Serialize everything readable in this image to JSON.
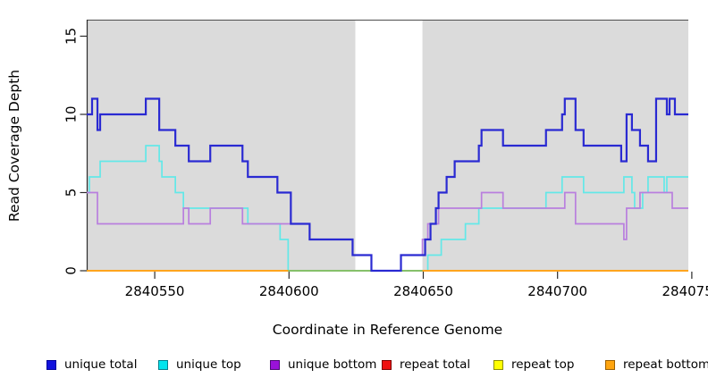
{
  "figure": {
    "x_axis": {
      "label": "Coordinate in Reference Genome",
      "ticks": [
        "2840550",
        "2840600",
        "2840650",
        "2840700",
        "2840750"
      ],
      "tick_values": [
        2840550,
        2840600,
        2840650,
        2840700,
        2840750
      ]
    },
    "y_axis": {
      "label": "Read Coverage Depth",
      "ticks": [
        "0",
        "5",
        "10",
        "15"
      ],
      "tick_values": [
        0,
        5,
        10,
        15
      ]
    }
  },
  "legend": [
    {
      "key": "unique-total",
      "label": "unique total",
      "swatch": "#1212dd",
      "border": "#00009c"
    },
    {
      "key": "unique-top",
      "label": "unique top",
      "swatch": "#00e5ee",
      "border": "#00808d"
    },
    {
      "key": "unique-bottom",
      "label": "unique bottom",
      "swatch": "#9a12d8",
      "border": "#4d0a74"
    },
    {
      "key": "repeat-total",
      "label": "repeat total",
      "swatch": "#ee1111",
      "border": "#7a0000"
    },
    {
      "key": "repeat-top",
      "label": "repeat top",
      "swatch": "#ffff00",
      "border": "#8d8d00"
    },
    {
      "key": "repeat-bottom",
      "label": "repeat bottom",
      "swatch": "#ffa510",
      "border": "#9c5f00"
    }
  ],
  "chart_data": {
    "type": "step-line",
    "title": "",
    "xlabel": "Coordinate in Reference Genome",
    "ylabel": "Read Coverage Depth",
    "x_range": [
      2840525,
      2840749
    ],
    "y_range": [
      0,
      16
    ],
    "grid": false,
    "panel_background": "#dbdbdb",
    "panel_top_border": "#4d4d4d",
    "gap_band": {
      "from": 2840625,
      "to": 2840650,
      "color": "#ffffff"
    },
    "zero_overlap_segment": {
      "from": 2840600,
      "to": 2840650,
      "depth": 0,
      "color": "#74c476",
      "note": "pale green blended line along zero between 2840600 and 2840650"
    },
    "series": [
      {
        "name": "unique total",
        "key": "unique-total",
        "color": "#2a2ad2",
        "width": 2.2,
        "steps": [
          [
            2840525,
            10
          ],
          [
            2840527,
            11
          ],
          [
            2840529,
            9
          ],
          [
            2840530,
            10
          ],
          [
            2840547,
            11
          ],
          [
            2840552,
            9
          ],
          [
            2840558,
            8
          ],
          [
            2840563,
            7
          ],
          [
            2840571,
            8
          ],
          [
            2840583,
            7
          ],
          [
            2840585,
            6
          ],
          [
            2840596,
            5
          ],
          [
            2840601,
            3
          ],
          [
            2840608,
            2
          ],
          [
            2840624,
            1
          ],
          [
            2840631,
            0
          ],
          [
            2840642,
            1
          ],
          [
            2840651,
            2
          ],
          [
            2840653,
            3
          ],
          [
            2840655,
            4
          ],
          [
            2840656,
            5
          ],
          [
            2840659,
            6
          ],
          [
            2840662,
            7
          ],
          [
            2840671,
            8
          ],
          [
            2840672,
            9
          ],
          [
            2840680,
            8
          ],
          [
            2840696,
            9
          ],
          [
            2840702,
            10
          ],
          [
            2840703,
            11
          ],
          [
            2840707,
            9
          ],
          [
            2840710,
            8
          ],
          [
            2840724,
            7
          ],
          [
            2840726,
            10
          ],
          [
            2840728,
            9
          ],
          [
            2840731,
            8
          ],
          [
            2840734,
            7
          ],
          [
            2840737,
            11
          ],
          [
            2840741,
            10
          ],
          [
            2840742,
            11
          ],
          [
            2840744,
            10
          ],
          [
            2840749,
            10
          ]
        ]
      },
      {
        "name": "unique top",
        "key": "unique-top",
        "color": "#63e8e8",
        "width": 1.7,
        "steps": [
          [
            2840525,
            5
          ],
          [
            2840526,
            6
          ],
          [
            2840530,
            7
          ],
          [
            2840547,
            8
          ],
          [
            2840552,
            7
          ],
          [
            2840553,
            6
          ],
          [
            2840558,
            5
          ],
          [
            2840561,
            4
          ],
          [
            2840585,
            3
          ],
          [
            2840597,
            2
          ],
          [
            2840600,
            0
          ],
          [
            2840652,
            1
          ],
          [
            2840657,
            2
          ],
          [
            2840666,
            3
          ],
          [
            2840671,
            4
          ],
          [
            2840696,
            5
          ],
          [
            2840702,
            6
          ],
          [
            2840710,
            5
          ],
          [
            2840725,
            6
          ],
          [
            2840728,
            5
          ],
          [
            2840729,
            4
          ],
          [
            2840732,
            5
          ],
          [
            2840734,
            6
          ],
          [
            2840740,
            5
          ],
          [
            2840741,
            6
          ],
          [
            2840749,
            6
          ]
        ]
      },
      {
        "name": "unique bottom",
        "key": "unique-bottom",
        "color": "#b97fde",
        "width": 1.7,
        "steps": [
          [
            2840525,
            5
          ],
          [
            2840529,
            3
          ],
          [
            2840561,
            4
          ],
          [
            2840563,
            3
          ],
          [
            2840571,
            4
          ],
          [
            2840583,
            3
          ],
          [
            2840608,
            2
          ],
          [
            2840624,
            1
          ],
          [
            2840631,
            0
          ],
          [
            2840642,
            1
          ],
          [
            2840650,
            2
          ],
          [
            2840652,
            3
          ],
          [
            2840656,
            4
          ],
          [
            2840672,
            5
          ],
          [
            2840680,
            4
          ],
          [
            2840703,
            5
          ],
          [
            2840707,
            3
          ],
          [
            2840725,
            2
          ],
          [
            2840726,
            4
          ],
          [
            2840731,
            5
          ],
          [
            2840743,
            4
          ],
          [
            2840749,
            4
          ]
        ]
      },
      {
        "name": "repeat total",
        "key": "repeat-total",
        "color": "#ee1111",
        "width": 1.5,
        "steps": [
          [
            2840525,
            0
          ],
          [
            2840749,
            0
          ]
        ]
      },
      {
        "name": "repeat top",
        "key": "repeat-top",
        "color": "#ffff00",
        "width": 1.5,
        "steps": [
          [
            2840525,
            0
          ],
          [
            2840749,
            0
          ]
        ]
      },
      {
        "name": "repeat bottom",
        "key": "repeat-bottom",
        "color": "#ffa41e",
        "width": 2,
        "steps": [
          [
            2840525,
            0
          ],
          [
            2840749,
            0
          ]
        ]
      }
    ]
  }
}
